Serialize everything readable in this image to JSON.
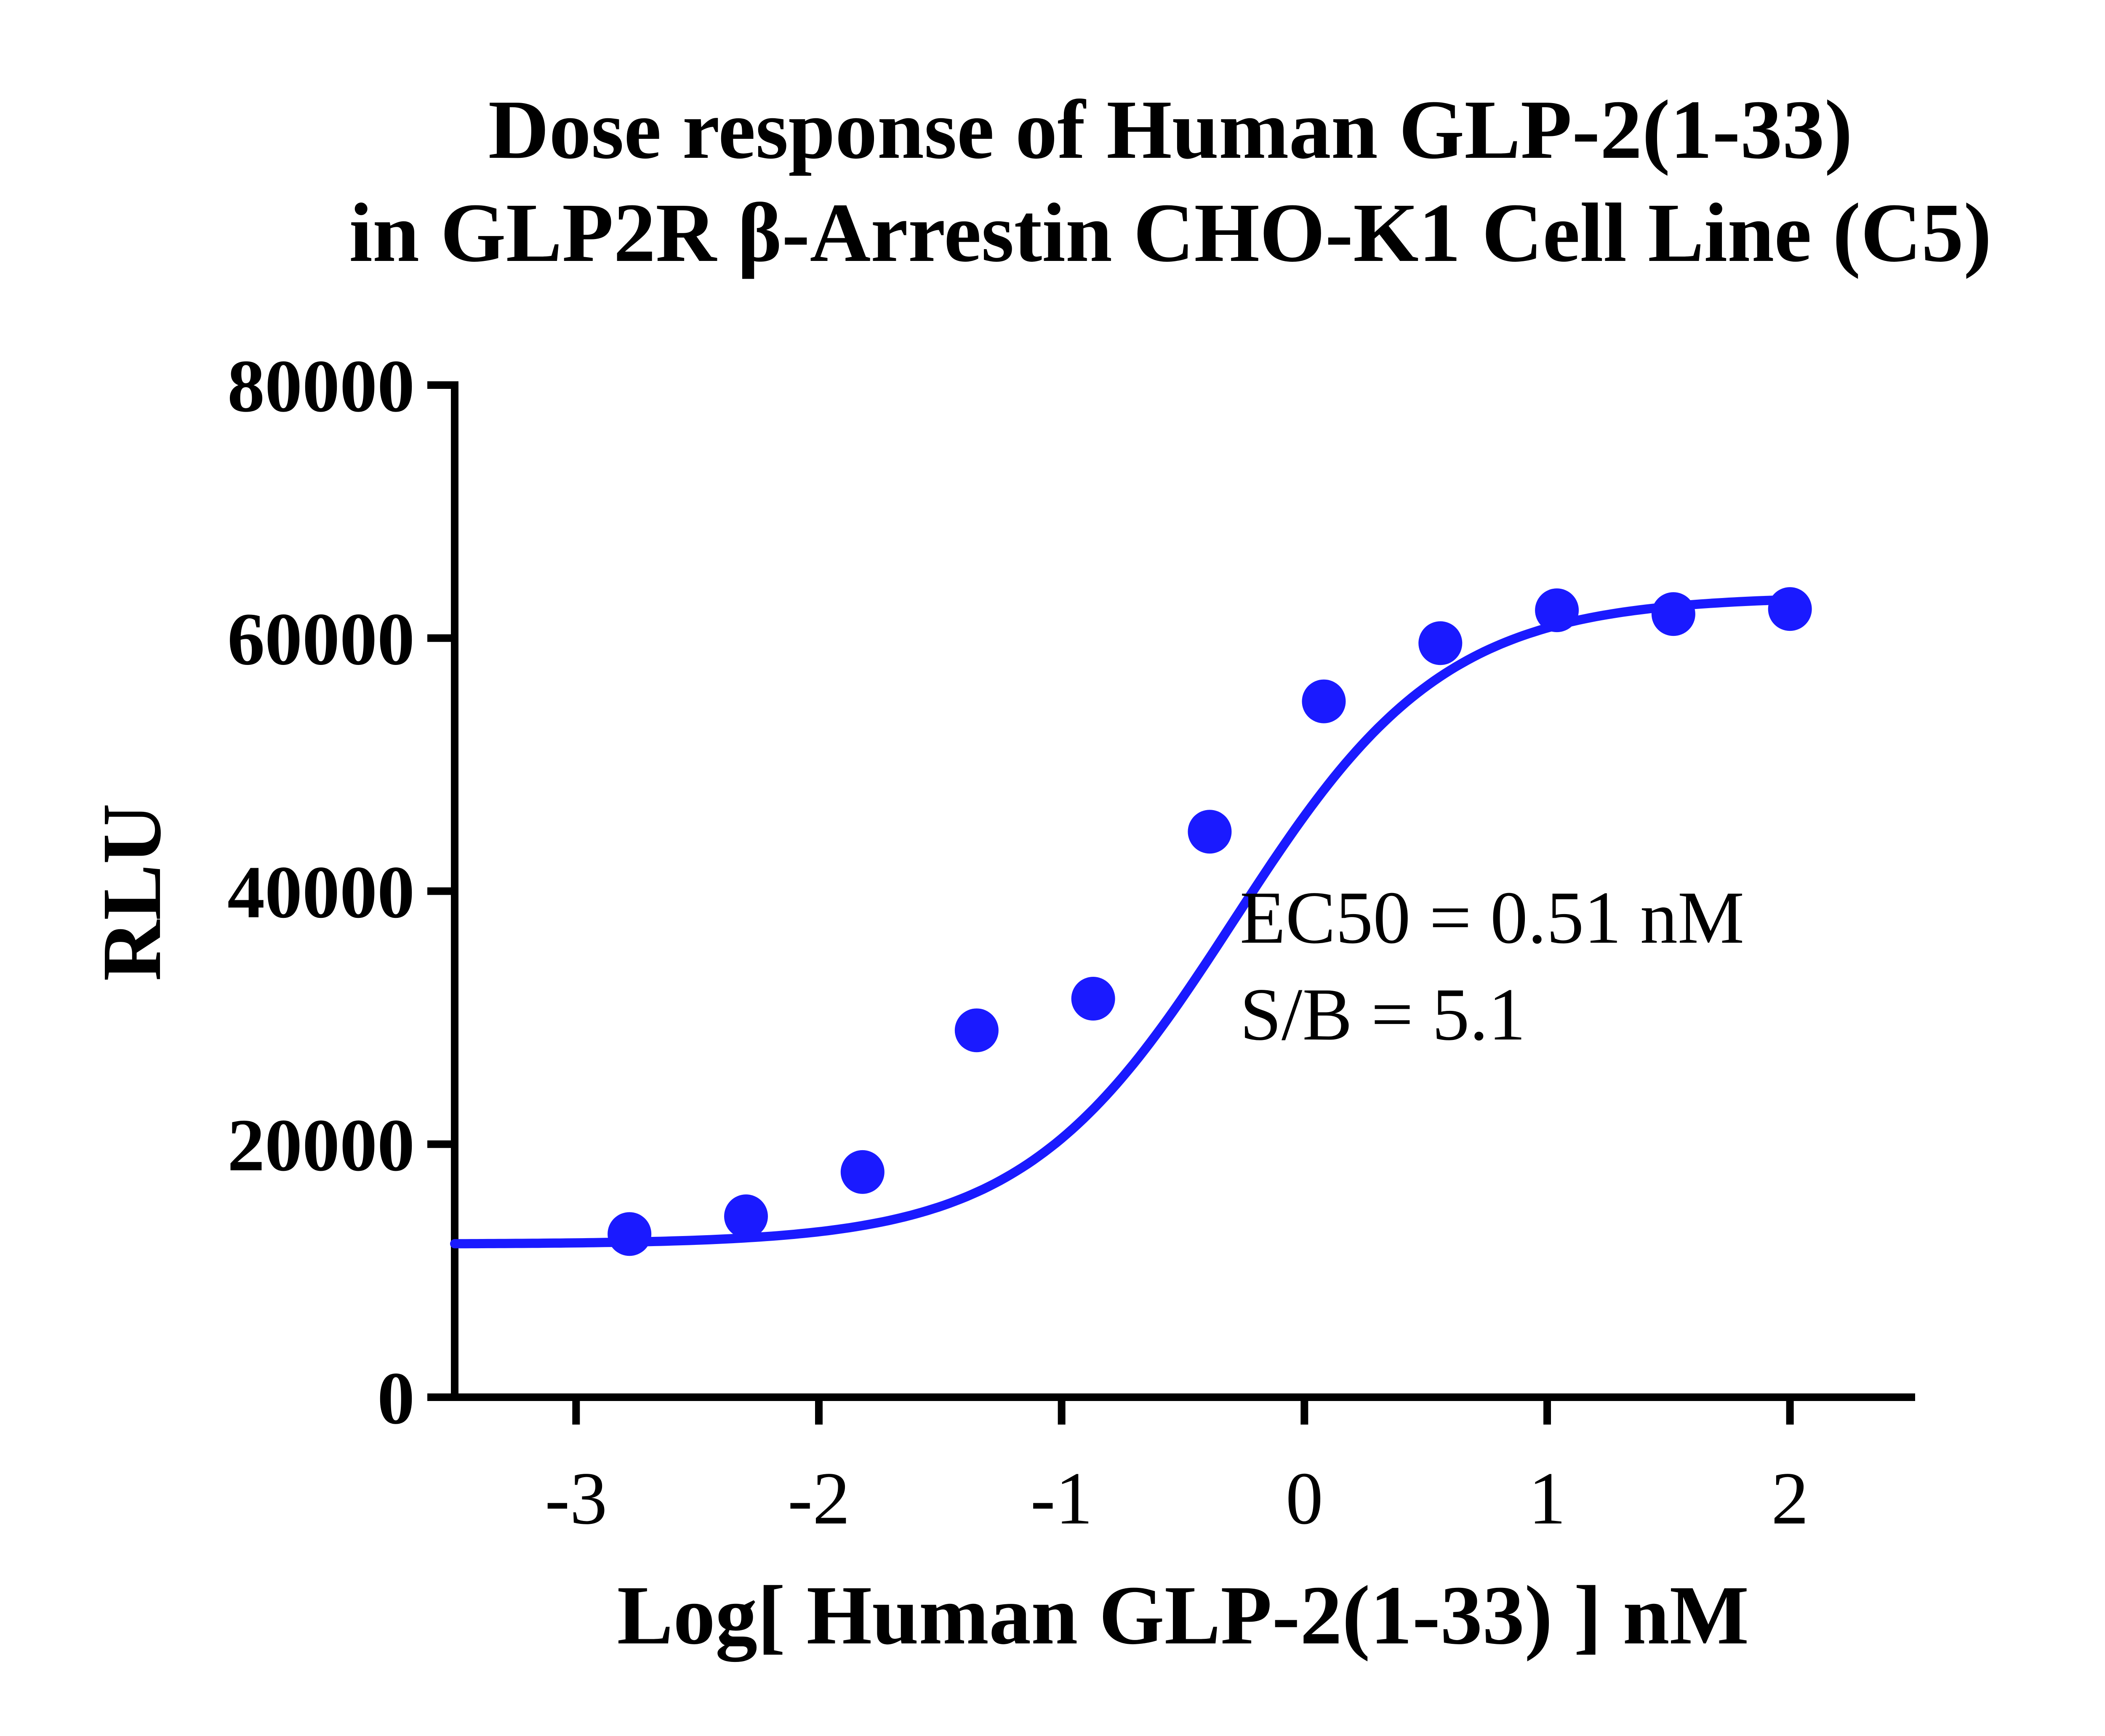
{
  "chart_data": {
    "type": "scatter",
    "title_lines": [
      "Dose response of Human GLP-2(1-33)",
      "in GLP2R β-Arrestin CHO-K1 Cell Line (C5)"
    ],
    "xlabel": "Log[ Human GLP-2(1-33) ] nM",
    "ylabel": "RLU",
    "xlim": [
      -3.5,
      2.5
    ],
    "ylim": [
      0,
      80000
    ],
    "x_ticks": [
      -3,
      -2,
      -1,
      0,
      1,
      2
    ],
    "x_tick_labels": [
      "-3",
      "-2",
      "-1",
      "0",
      "1",
      "2"
    ],
    "y_ticks": [
      0,
      20000,
      40000,
      60000,
      80000
    ],
    "y_tick_labels": [
      "0",
      "20000",
      "40000",
      "60000",
      "80000"
    ],
    "grid": false,
    "legend": "none",
    "color": "#1a1aff",
    "series": [
      {
        "x": [
          -2.78,
          -2.3,
          -1.82,
          -1.35,
          -0.87,
          -0.39,
          0.08,
          0.56,
          1.04,
          1.52,
          2.0
        ],
        "y": [
          12900,
          14300,
          17800,
          29000,
          31500,
          44700,
          55000,
          59600,
          62200,
          61900,
          62300
        ]
      }
    ],
    "fit_curve": {
      "model": "four-parameter logistic",
      "bottom": 12100,
      "top": 63300,
      "log_ec50": -0.29,
      "hill_slope": 1.0
    },
    "annotations": [
      "EC50 = 0.51 nM",
      "S/B = 5.1"
    ]
  }
}
